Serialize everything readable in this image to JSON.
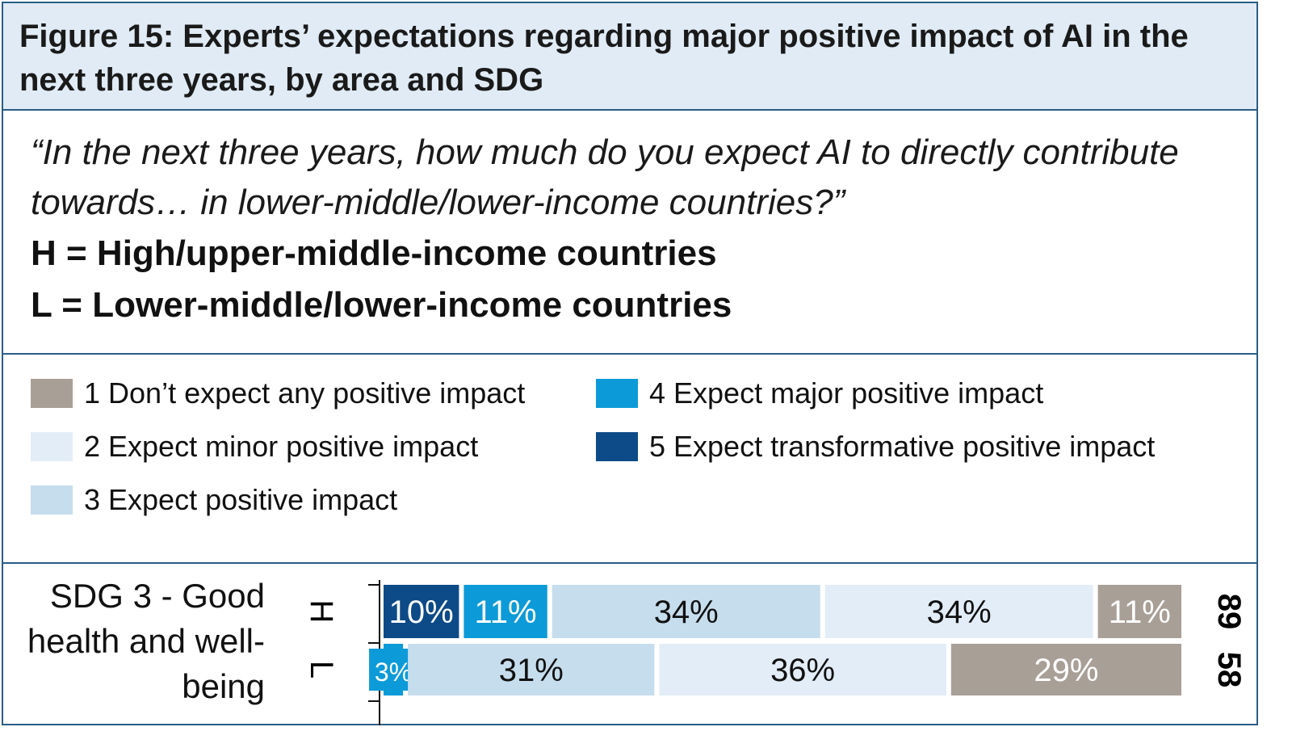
{
  "title": "Figure 15: Experts’ expectations regarding major positive impact of AI in the next three years, by area and SDG",
  "question": "“In the next three years, how much do you expect AI to directly contribute towards… in lower-middle/lower-income countries?”",
  "definitions": [
    "H = High/upper-middle-income countries",
    "L = Lower-middle/lower-income countries"
  ],
  "colors": {
    "border": "#2a5d86",
    "header_bg": "#e0ebf5"
  },
  "chart_data": {
    "type": "bar",
    "orientation": "horizontal",
    "stacked": true,
    "title": "Figure 15: Experts’ expectations regarding major positive impact of AI in the next three years, by area and SDG",
    "category": "SDG 3 - Good health and well-being",
    "groups": [
      "H",
      "L"
    ],
    "counts": [
      "89",
      "58"
    ],
    "legend": [
      {
        "label": "1 Don’t expect any positive impact",
        "color": "#a89f97"
      },
      {
        "label": "2 Expect minor positive impact",
        "color": "#e3edf7"
      },
      {
        "label": "3 Expect positive impact",
        "color": "#c6dded"
      },
      {
        "label": "4 Expect major positive impact",
        "color": "#0c9bd8"
      },
      {
        "label": "5 Expect transformative positive impact",
        "color": "#0d4a88"
      }
    ],
    "stack_order": [
      5,
      4,
      3,
      2,
      1
    ],
    "series": [
      {
        "name": "5 Expect transformative positive impact",
        "values": [
          10,
          0
        ]
      },
      {
        "name": "4 Expect major positive impact",
        "values": [
          11,
          3
        ]
      },
      {
        "name": "3 Expect positive impact",
        "values": [
          34,
          31
        ]
      },
      {
        "name": "2 Expect minor positive impact",
        "values": [
          34,
          36
        ]
      },
      {
        "name": "1 Don’t expect any positive impact",
        "values": [
          11,
          29
        ]
      }
    ],
    "unit": "%",
    "legend_placement": "top"
  }
}
